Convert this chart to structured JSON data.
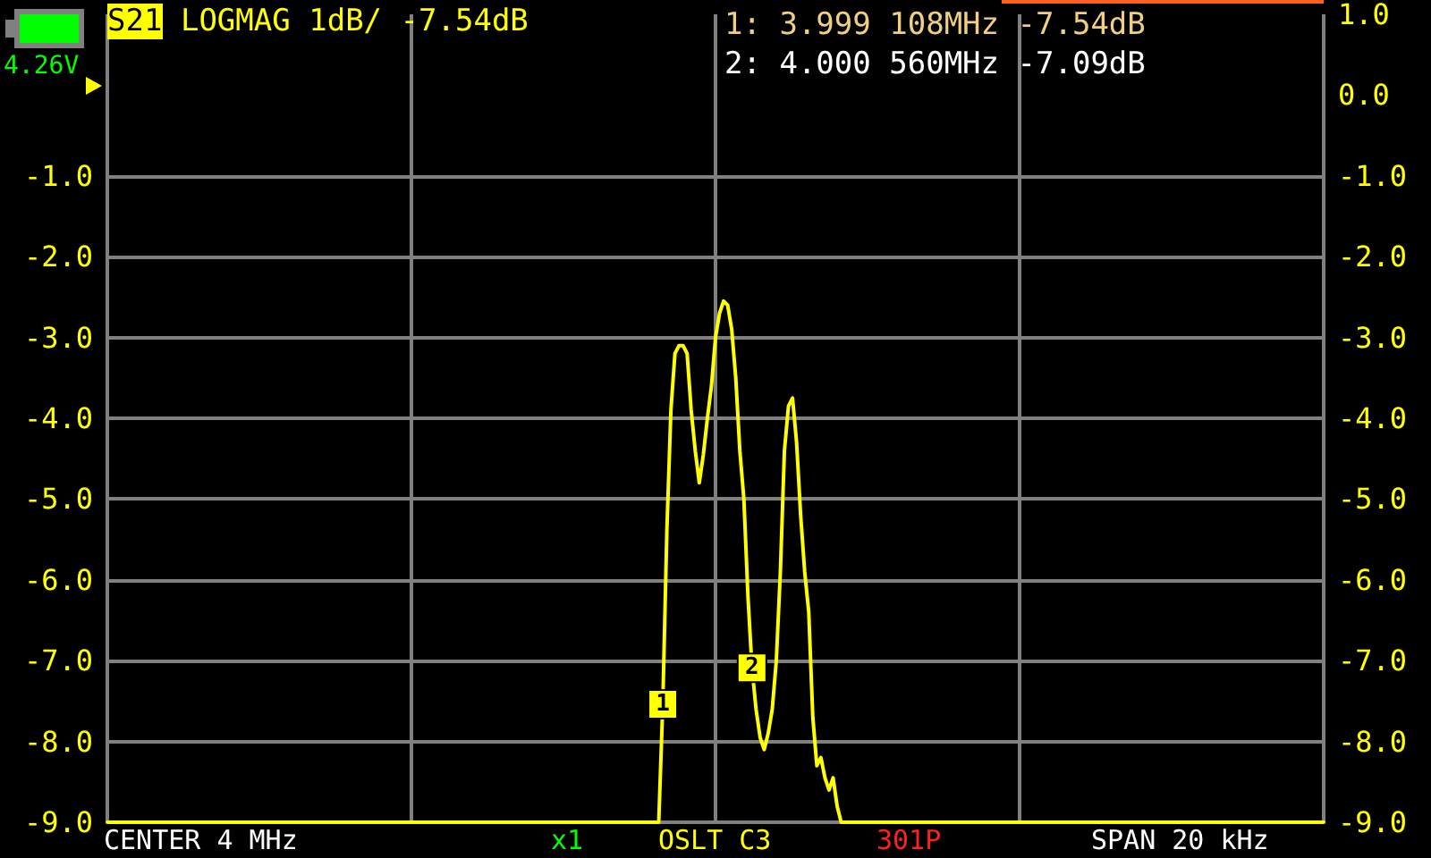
{
  "chart_data": {
    "type": "line",
    "title": "S21 LOGMAG 1dB/ -7.54dB",
    "annotations": [
      "4.26V",
      "1: 3.999 108MHz -7.54dB",
      "2: 4.000 560MHz -7.09dB",
      "CENTER 4 MHz",
      "x1",
      "OSLT C3",
      "301P",
      "SPAN 20 kHz",
      {
        "text": "1",
        "y": -7.54
      },
      {
        "text": "2",
        "y": -7.09
      }
    ],
    "categories": [
      null,
      null,
      null,
      null,
      null,
      null,
      null,
      null,
      null,
      null,
      null,
      null,
      null,
      null,
      null,
      null,
      null,
      null,
      null,
      null,
      null,
      null,
      null,
      null,
      null,
      null,
      null,
      null,
      null,
      null,
      null,
      null,
      null,
      null,
      null,
      null,
      null,
      null,
      null,
      null,
      null,
      null,
      null,
      null,
      null,
      null,
      null,
      null,
      null,
      null,
      null,
      null,
      null,
      null,
      null,
      null,
      null,
      null,
      null,
      null,
      null,
      null,
      null,
      null,
      null,
      null,
      null,
      null,
      null,
      null,
      null,
      null,
      null,
      null,
      null,
      null,
      null,
      null,
      null,
      null,
      null,
      null,
      null,
      null,
      null,
      null,
      null,
      null,
      null,
      null,
      null,
      null,
      null,
      null,
      null,
      null,
      null,
      null,
      null,
      null,
      null,
      null,
      null,
      null,
      null,
      null,
      null,
      null,
      null,
      null,
      null,
      null,
      null,
      null,
      null,
      null,
      null,
      null,
      null,
      null,
      null,
      null,
      null,
      null,
      null,
      null,
      null,
      null,
      null,
      null,
      null,
      null,
      null,
      null,
      null,
      null,
      null,
      null,
      null,
      null,
      null,
      null,
      null,
      null,
      null,
      null,
      null,
      null,
      null,
      null,
      null,
      null,
      null,
      null,
      null,
      null,
      null,
      null,
      null,
      null,
      null,
      null,
      null,
      null,
      null,
      null,
      null,
      null,
      null,
      null,
      null,
      null,
      null,
      null,
      null,
      null,
      null,
      null,
      null,
      null,
      null,
      null,
      null,
      null,
      null,
      null,
      null,
      null,
      null,
      null,
      null,
      null,
      null,
      null,
      null,
      null,
      null,
      null,
      null,
      null,
      null,
      null,
      null,
      null,
      null,
      null,
      null,
      null,
      null,
      null,
      null,
      null,
      null,
      null,
      null,
      null,
      null,
      null,
      null,
      null,
      null,
      null,
      null,
      null,
      null,
      null,
      null,
      null,
      null,
      null,
      null,
      null,
      null,
      null,
      null,
      null,
      null,
      null,
      null,
      null,
      null,
      null,
      null,
      null,
      null,
      null,
      null,
      null,
      null,
      null,
      null,
      null,
      null,
      null,
      null,
      null,
      null,
      null,
      null,
      null,
      null,
      null,
      null,
      null,
      null,
      null,
      null,
      null,
      null,
      null,
      null,
      null,
      null,
      null,
      null,
      null,
      null,
      null,
      null,
      null,
      null,
      null,
      null,
      null,
      null,
      null,
      null,
      null,
      null,
      null,
      null,
      null,
      null,
      null,
      null,
      null,
      null,
      null,
      null,
      null,
      null
    ],
    "series": [
      {
        "color": "#ffff00",
        "values": [
          -9,
          -9,
          -9,
          -9,
          -9,
          -9,
          -9,
          -9,
          -9,
          -9,
          -9,
          -9,
          -9,
          -9,
          -9,
          -9,
          -9,
          -9,
          -9,
          -9,
          -9,
          -9,
          -9,
          -9,
          -9,
          -9,
          -9,
          -9,
          -9,
          -9,
          -9,
          -9,
          -9,
          -9,
          -9,
          -9,
          -9,
          -9,
          -9,
          -9,
          -9,
          -9,
          -9,
          -9,
          -9,
          -9,
          -9,
          -9,
          -9,
          -9,
          -9,
          -9,
          -9,
          -9,
          -9,
          -9,
          -9,
          -9,
          -9,
          -9,
          -9,
          -9,
          -9,
          -9,
          -9,
          -9,
          -9,
          -9,
          -9,
          -9,
          -9,
          -9,
          -9,
          -9,
          -9,
          -9,
          -9,
          -9,
          -9,
          -9,
          -9,
          -9,
          -9,
          -9,
          -9,
          -9,
          -9,
          -9,
          -9,
          -9,
          -9,
          -9,
          -9,
          -9,
          -9,
          -9,
          -9,
          -9,
          -9,
          -9,
          -9,
          -9,
          -9,
          -9,
          -9,
          -9,
          -9,
          -9,
          -9,
          -9,
          -9,
          -9,
          -9,
          -9,
          -9,
          -9,
          -9,
          -9,
          -9,
          -9,
          -9,
          -9,
          -9,
          -9,
          -9,
          -9,
          -9,
          -9,
          -9,
          -9,
          -9,
          -9,
          -9,
          -9,
          -9,
          -9,
          -9,
          -7.54,
          -5.4,
          -3.9,
          -3.2,
          -3.1,
          -3.1,
          -3.2,
          -3.9,
          -4.4,
          -4.8,
          -4.45,
          -4.0,
          -3.6,
          -3.0,
          -2.7,
          -2.55,
          -2.6,
          -2.9,
          -3.5,
          -4.4,
          -5.0,
          -6.2,
          -7.09,
          -7.6,
          -7.95,
          -8.1,
          -7.9,
          -7.6,
          -7.0,
          -5.9,
          -4.4,
          -3.85,
          -3.75,
          -4.3,
          -5.2,
          -5.9,
          -6.4,
          -7.7,
          -8.3,
          -8.2,
          -8.45,
          -8.6,
          -8.45,
          -8.8,
          -9,
          -9,
          -9,
          -9,
          -9,
          -9,
          -9,
          -9,
          -9,
          -9,
          -9,
          -9,
          -9,
          -9,
          -9,
          -9,
          -9,
          -9,
          -9,
          -9,
          -9,
          -9,
          -9,
          -9,
          -9,
          -9,
          -9,
          -9,
          -9,
          -9,
          -9,
          -9,
          -9,
          -9,
          -9,
          -9,
          -9,
          -9,
          -9,
          -9,
          -9,
          -9,
          -9,
          -9,
          -9,
          -9,
          -9,
          -9,
          -9,
          -9,
          -9,
          -9,
          -9,
          -9,
          -9,
          -9,
          -9,
          -9,
          -9,
          -9,
          -9,
          -9,
          -9,
          -9,
          -9,
          -9,
          -9,
          -9,
          -9,
          -9,
          -9,
          -9,
          -9,
          -9,
          -9,
          -9,
          -9,
          -9,
          -9,
          -9,
          -9,
          -9,
          -9,
          -9,
          -9,
          -9,
          -9,
          -9,
          -9,
          -9,
          -9,
          -9,
          -9,
          -9,
          -9,
          -9,
          -9,
          -9,
          -9,
          -9,
          -9,
          -9,
          -9,
          -9,
          -9,
          -9,
          -9,
          -9,
          -9,
          -9,
          -9,
          -9,
          -9,
          -9,
          -9,
          -9,
          -9,
          -9,
          -9,
          -9
        ]
      }
    ],
    "marker": "none",
    "line_style": "solid",
    "grid": true,
    "tick_labels": "y",
    "ylim": [
      -9,
      1
    ],
    "yticks": [
      {
        "value": -1,
        "label": "-1.0"
      },
      {
        "value": -2,
        "label": "-2.0"
      },
      {
        "value": -3,
        "label": "-3.0"
      },
      {
        "value": -4,
        "label": "-4.0"
      },
      {
        "value": -5,
        "label": "-5.0"
      },
      {
        "value": -6,
        "label": "-6.0"
      },
      {
        "value": -7,
        "label": "-7.0"
      },
      {
        "value": -8,
        "label": "-8.0"
      },
      {
        "value": -9,
        "label": "-9.0"
      }
    ],
    "y2lim": [
      -9,
      1
    ],
    "y2ticks": [
      {
        "value": 1,
        "label": "1.0"
      },
      {
        "value": 0,
        "label": "0.0"
      },
      {
        "value": -1,
        "label": "-1.0"
      },
      {
        "value": -2,
        "label": "-2.0"
      },
      {
        "value": -3,
        "label": "-3.0"
      },
      {
        "value": -4,
        "label": "-4.0"
      },
      {
        "value": -5,
        "label": "-5.0"
      },
      {
        "value": -6,
        "label": "-6.0"
      },
      {
        "value": -7,
        "label": "-7.0"
      },
      {
        "value": -8,
        "label": "-8.0"
      },
      {
        "value": -9,
        "label": "-9.0"
      }
    ]
  }
}
